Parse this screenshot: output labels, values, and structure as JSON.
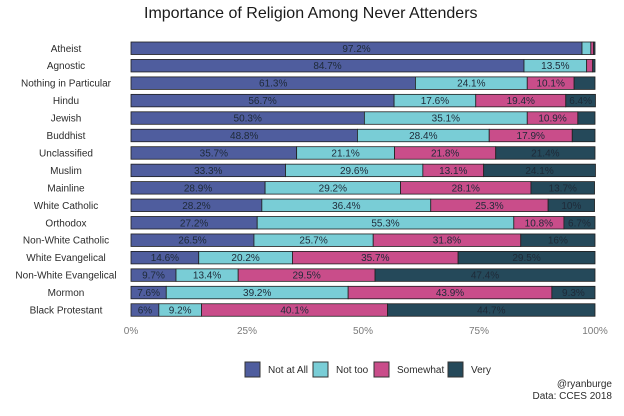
{
  "chart_data": {
    "type": "bar",
    "orientation": "horizontal",
    "stacked": true,
    "title": "Importance of Religion Among Never Attenders",
    "xlabel": "",
    "ylabel": "",
    "xlim": [
      0,
      100
    ],
    "x_ticks": [
      "0%",
      "25%",
      "50%",
      "75%",
      "100%"
    ],
    "x_tick_values": [
      0,
      25,
      50,
      75,
      100
    ],
    "grid": false,
    "legend_position": "bottom",
    "categories": [
      "Atheist",
      "Agnostic",
      "Nothing in Particular",
      "Hindu",
      "Jewish",
      "Buddhist",
      "Unclassified",
      "Muslim",
      "Mainline",
      "White Catholic",
      "Orthodox",
      "Non-White Catholic",
      "White Evangelical",
      "Non-White Evangelical",
      "Mormon",
      "Black Protestant"
    ],
    "series": [
      {
        "name": "Not at All",
        "color": "#4f5d9e",
        "values": [
          97.2,
          84.7,
          61.3,
          56.7,
          50.3,
          48.8,
          35.7,
          33.3,
          28.9,
          28.2,
          27.2,
          26.5,
          14.6,
          9.7,
          7.6,
          6.0
        ],
        "labels": [
          "97.2%",
          "84.7%",
          "61.3%",
          "56.7%",
          "50.3%",
          "48.8%",
          "35.7%",
          "33.3%",
          "28.9%",
          "28.2%",
          "27.2%",
          "26.5%",
          "14.6%",
          "9.7%",
          "7.6%",
          "6%"
        ]
      },
      {
        "name": "Not too",
        "color": "#79cdd6",
        "values": [
          1.9,
          13.5,
          24.1,
          17.6,
          35.1,
          28.4,
          21.1,
          29.6,
          29.2,
          36.4,
          55.3,
          25.7,
          20.2,
          13.4,
          39.2,
          9.2
        ],
        "labels": [
          "",
          "13.5%",
          "24.1%",
          "17.6%",
          "35.1%",
          "28.4%",
          "21.1%",
          "29.6%",
          "29.2%",
          "36.4%",
          "55.3%",
          "25.7%",
          "20.2%",
          "13.4%",
          "39.2%",
          "9.2%"
        ]
      },
      {
        "name": "Somewhat",
        "color": "#c94d8a",
        "values": [
          0.6,
          1.3,
          10.1,
          19.4,
          10.9,
          17.9,
          21.8,
          13.1,
          28.1,
          25.3,
          10.8,
          31.8,
          35.7,
          29.5,
          43.9,
          40.1
        ],
        "labels": [
          "",
          "",
          "10.1%",
          "19.4%",
          "10.9%",
          "17.9%",
          "21.8%",
          "13.1%",
          "28.1%",
          "25.3%",
          "10.8%",
          "31.8%",
          "35.7%",
          "29.5%",
          "43.9%",
          "40.1%"
        ]
      },
      {
        "name": "Very",
        "color": "#25495a",
        "values": [
          0.3,
          0.5,
          4.5,
          6.4,
          3.7,
          4.9,
          21.4,
          24.1,
          13.7,
          10.0,
          6.7,
          16.0,
          29.5,
          47.4,
          9.3,
          44.7
        ],
        "labels": [
          "",
          "",
          "",
          "6.4%",
          "",
          "",
          "21.4%",
          "24.1%",
          "13.7%",
          "10%",
          "6.7%",
          "16%",
          "29.5%",
          "47.4%",
          "9.3%",
          "44.7%"
        ]
      }
    ],
    "annotations": [
      "@ryanburge",
      "Data: CCES 2018"
    ]
  }
}
